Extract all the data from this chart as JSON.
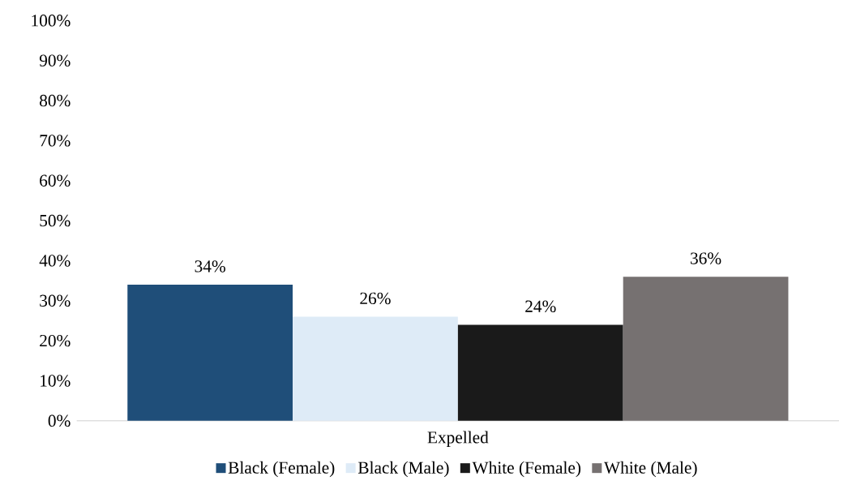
{
  "chart_data": {
    "type": "bar",
    "categories": [
      "Expelled"
    ],
    "series": [
      {
        "name": "Black (Female)",
        "color": "#1f4e79",
        "values": [
          34
        ],
        "value_labels": [
          "34%"
        ]
      },
      {
        "name": "Black (Male)",
        "color": "#deebf7",
        "values": [
          26
        ],
        "value_labels": [
          "26%"
        ]
      },
      {
        "name": "White (Female)",
        "color": "#1a1a1a",
        "values": [
          24
        ],
        "value_labels": [
          "24%"
        ]
      },
      {
        "name": "White (Male)",
        "color": "#767171",
        "values": [
          36
        ],
        "value_labels": [
          "36%"
        ]
      }
    ],
    "ylim": [
      0,
      100
    ],
    "yticks": [
      {
        "value": 0,
        "label": "0%"
      },
      {
        "value": 10,
        "label": "10%"
      },
      {
        "value": 20,
        "label": "20%"
      },
      {
        "value": 30,
        "label": "30%"
      },
      {
        "value": 40,
        "label": "40%"
      },
      {
        "value": 50,
        "label": "50%"
      },
      {
        "value": 60,
        "label": "60%"
      },
      {
        "value": 70,
        "label": "70%"
      },
      {
        "value": 80,
        "label": "80%"
      },
      {
        "value": 90,
        "label": "90%"
      },
      {
        "value": 100,
        "label": "100%"
      }
    ],
    "grid": false,
    "legend": "bottom"
  }
}
